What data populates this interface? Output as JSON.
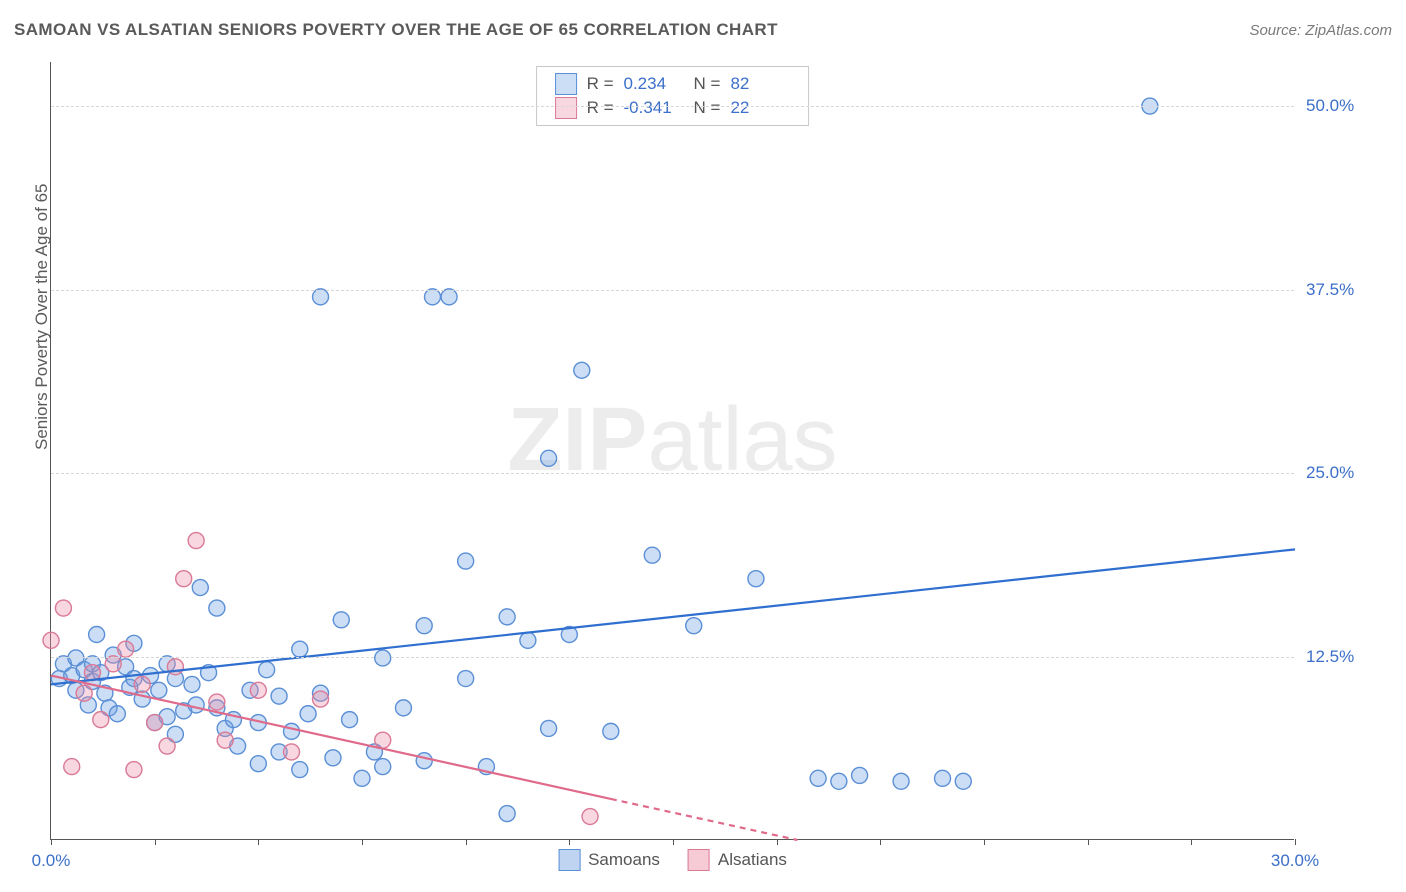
{
  "title": "SAMOAN VS ALSATIAN SENIORS POVERTY OVER THE AGE OF 65 CORRELATION CHART",
  "source_label": "Source: ZipAtlas.com",
  "y_axis_label": "Seniors Poverty Over the Age of 65",
  "watermark": {
    "bold": "ZIP",
    "rest": "atlas"
  },
  "chart": {
    "type": "scatter",
    "background_color": "#ffffff",
    "grid_color": "#d8d8d8",
    "axis_color": "#555555",
    "tick_label_color": "#3b6fc9",
    "xlim": [
      0,
      30
    ],
    "ylim": [
      0,
      53
    ],
    "x_ticks": [
      0,
      2.5,
      5,
      7.5,
      10,
      12.5,
      15,
      17.5,
      20,
      22.5,
      25,
      27.5,
      30
    ],
    "x_tick_labels": {
      "0": "0.0%",
      "30": "30.0%"
    },
    "y_grid": [
      12.5,
      25.0,
      37.5,
      50.0
    ],
    "y_tick_labels": [
      "12.5%",
      "25.0%",
      "37.5%",
      "50.0%"
    ],
    "marker_radius": 8,
    "marker_stroke_width": 1.4,
    "trend_line_width": 2.2,
    "series": [
      {
        "name": "Samoans",
        "color_fill": "rgba(110,160,225,0.35)",
        "color_stroke": "#5b8fd6",
        "trend_color": "#2f6fd0",
        "r": 0.234,
        "n": 82,
        "trend": {
          "x1": 0,
          "y1": 10.6,
          "x2": 30,
          "y2": 19.8,
          "dashed_from": null
        },
        "points": [
          [
            0.2,
            11.0
          ],
          [
            0.3,
            12.0
          ],
          [
            0.5,
            11.2
          ],
          [
            0.6,
            10.2
          ],
          [
            0.6,
            12.4
          ],
          [
            0.8,
            11.6
          ],
          [
            0.9,
            9.2
          ],
          [
            1.0,
            10.8
          ],
          [
            1.0,
            12.0
          ],
          [
            1.1,
            14.0
          ],
          [
            1.2,
            11.4
          ],
          [
            1.3,
            10.0
          ],
          [
            1.4,
            9.0
          ],
          [
            1.5,
            12.6
          ],
          [
            1.6,
            8.6
          ],
          [
            1.8,
            11.8
          ],
          [
            1.9,
            10.4
          ],
          [
            2.0,
            13.4
          ],
          [
            2.0,
            11.0
          ],
          [
            2.2,
            9.6
          ],
          [
            2.4,
            11.2
          ],
          [
            2.5,
            8.0
          ],
          [
            2.6,
            10.2
          ],
          [
            2.8,
            12.0
          ],
          [
            2.8,
            8.4
          ],
          [
            3.0,
            11.0
          ],
          [
            3.0,
            7.2
          ],
          [
            3.2,
            8.8
          ],
          [
            3.4,
            10.6
          ],
          [
            3.5,
            9.2
          ],
          [
            3.6,
            17.2
          ],
          [
            3.8,
            11.4
          ],
          [
            4.0,
            15.8
          ],
          [
            4.0,
            9.0
          ],
          [
            4.2,
            7.6
          ],
          [
            4.4,
            8.2
          ],
          [
            4.5,
            6.4
          ],
          [
            4.8,
            10.2
          ],
          [
            5.0,
            8.0
          ],
          [
            5.0,
            5.2
          ],
          [
            5.2,
            11.6
          ],
          [
            5.5,
            9.8
          ],
          [
            5.5,
            6.0
          ],
          [
            5.8,
            7.4
          ],
          [
            6.0,
            13.0
          ],
          [
            6.0,
            4.8
          ],
          [
            6.2,
            8.6
          ],
          [
            6.5,
            10.0
          ],
          [
            6.5,
            37.0
          ],
          [
            6.8,
            5.6
          ],
          [
            7.0,
            15.0
          ],
          [
            7.2,
            8.2
          ],
          [
            7.5,
            4.2
          ],
          [
            7.8,
            6.0
          ],
          [
            8.0,
            12.4
          ],
          [
            8.0,
            5.0
          ],
          [
            8.5,
            9.0
          ],
          [
            9.0,
            14.6
          ],
          [
            9.0,
            5.4
          ],
          [
            9.2,
            37.0
          ],
          [
            9.6,
            37.0
          ],
          [
            10.0,
            19.0
          ],
          [
            10.0,
            11.0
          ],
          [
            10.5,
            5.0
          ],
          [
            11.0,
            15.2
          ],
          [
            11.0,
            1.8
          ],
          [
            11.5,
            13.6
          ],
          [
            12.0,
            26.0
          ],
          [
            12.0,
            7.6
          ],
          [
            12.5,
            14.0
          ],
          [
            12.8,
            32.0
          ],
          [
            13.5,
            7.4
          ],
          [
            14.5,
            19.4
          ],
          [
            15.5,
            14.6
          ],
          [
            17.0,
            17.8
          ],
          [
            18.5,
            4.2
          ],
          [
            19.0,
            4.0
          ],
          [
            19.5,
            4.4
          ],
          [
            20.5,
            4.0
          ],
          [
            21.5,
            4.2
          ],
          [
            22.0,
            4.0
          ],
          [
            26.5,
            50.0
          ]
        ]
      },
      {
        "name": "Alsatians",
        "color_fill": "rgba(235,140,165,0.35)",
        "color_stroke": "#da7a97",
        "trend_color": "#e06a8a",
        "r": -0.341,
        "n": 22,
        "trend": {
          "x1": 0,
          "y1": 11.2,
          "x2": 18,
          "y2": 0.0,
          "dashed_from": 13.5
        },
        "points": [
          [
            0.0,
            13.6
          ],
          [
            0.3,
            15.8
          ],
          [
            0.5,
            5.0
          ],
          [
            0.8,
            10.0
          ],
          [
            1.0,
            11.4
          ],
          [
            1.2,
            8.2
          ],
          [
            1.5,
            12.0
          ],
          [
            1.8,
            13.0
          ],
          [
            2.0,
            4.8
          ],
          [
            2.2,
            10.6
          ],
          [
            2.5,
            8.0
          ],
          [
            2.8,
            6.4
          ],
          [
            3.0,
            11.8
          ],
          [
            3.2,
            17.8
          ],
          [
            3.5,
            20.4
          ],
          [
            4.0,
            9.4
          ],
          [
            4.2,
            6.8
          ],
          [
            5.0,
            10.2
          ],
          [
            5.8,
            6.0
          ],
          [
            6.5,
            9.6
          ],
          [
            8.0,
            6.8
          ],
          [
            13.0,
            1.6
          ]
        ]
      }
    ]
  },
  "legend_top": {
    "r_label": "R =",
    "n_label": "N ="
  },
  "legend_bottom": [
    {
      "label": "Samoans",
      "fill": "rgba(110,160,225,0.45)",
      "stroke": "#5b8fd6"
    },
    {
      "label": "Alsatians",
      "fill": "rgba(235,140,165,0.45)",
      "stroke": "#da7a97"
    }
  ]
}
